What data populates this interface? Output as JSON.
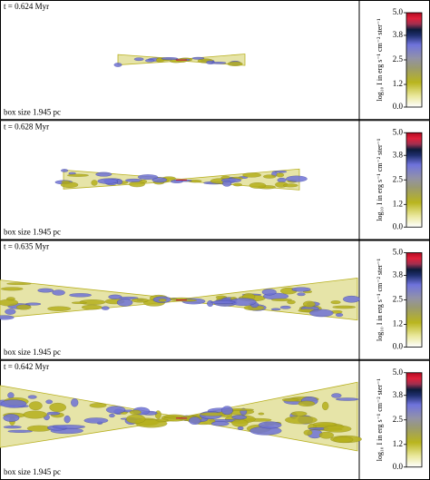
{
  "panels": [
    {
      "time_label": "t = 0.624 Myr",
      "box_label": "box size 1.945 pc",
      "colorbar": {
        "label": "log₁₀ I in erg s⁻¹ cm⁻² ster⁻¹",
        "lim": [
          0,
          5
        ],
        "ticks": [
          {
            "value": 0,
            "label": "0.0"
          },
          1.2,
          2.5,
          3.8,
          {
            "value": 5,
            "label": "5.0"
          }
        ]
      }
    },
    {
      "time_label": "t = 0.628 Myr",
      "box_label": "box size 1.945 pc",
      "colorbar": {
        "label": "log₁₀ I in erg s⁻¹ cm⁻² ster⁻¹",
        "lim": [
          0,
          5
        ],
        "ticks": [
          {
            "value": 0,
            "label": "0.0"
          },
          1.2,
          2.5,
          3.8,
          {
            "value": 5,
            "label": "5.0"
          }
        ]
      }
    },
    {
      "time_label": "t = 0.635 Myr",
      "box_label": "box size 1.945 pc",
      "colorbar": {
        "label": "log₁₀ I in erg s⁻¹ cm⁻² ster⁻¹",
        "lim": [
          0,
          5
        ],
        "ticks": [
          {
            "value": 0,
            "label": "0.0"
          },
          1.2,
          2.5,
          3.8,
          {
            "value": 5,
            "label": "5.0"
          }
        ]
      }
    },
    {
      "time_label": "t = 0.642 Myr",
      "box_label": "box size 1.945 pc",
      "colorbar": {
        "label": "log₁₀ I in erg s⁻¹ cm⁻² ster⁻¹",
        "lim": [
          0,
          5
        ],
        "ticks": [
          {
            "value": 0,
            "label": "0.0"
          },
          1.2,
          2.5,
          3.8,
          {
            "value": 5,
            "label": "5.0"
          }
        ]
      }
    }
  ]
}
